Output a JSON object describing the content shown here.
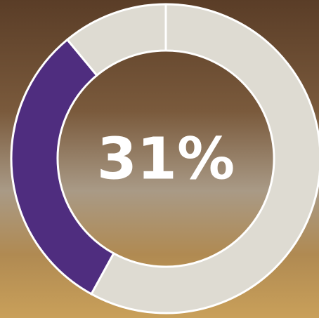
{
  "chart_data": {
    "type": "donut",
    "values": [
      58,
      31,
      11
    ],
    "colors": [
      "#dedbd2",
      "#4f2d7f",
      "#dedbd2"
    ],
    "center_label": "31%"
  }
}
